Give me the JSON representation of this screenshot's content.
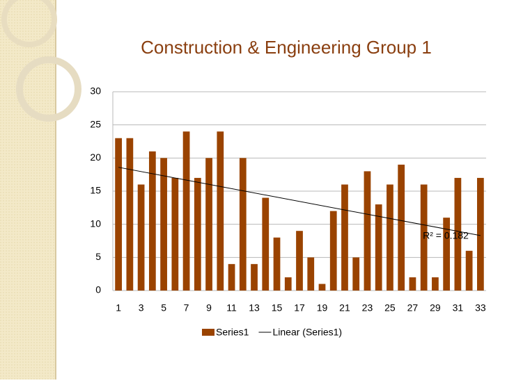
{
  "chart_data": {
    "type": "bar",
    "title": "Construction & Engineering Group 1",
    "categories": [
      1,
      null,
      3,
      null,
      5,
      null,
      7,
      null,
      9,
      null,
      11,
      null,
      13,
      null,
      15,
      null,
      17,
      null,
      19,
      null,
      21,
      null,
      23,
      null,
      25,
      null,
      27,
      null,
      29,
      null,
      31,
      null,
      33
    ],
    "series": [
      {
        "name": "Series1",
        "color": "#9a4300",
        "values": [
          23,
          23,
          16,
          21,
          20,
          17,
          24,
          17,
          20,
          24,
          4,
          20,
          4,
          14,
          8,
          2,
          9,
          5,
          1,
          12,
          16,
          5,
          18,
          13,
          16,
          19,
          2,
          16,
          2,
          11,
          17,
          6,
          17
        ]
      }
    ],
    "trendline": {
      "name": "Linear (Series1)",
      "color": "#000000",
      "start": 18.6,
      "end": 8.3,
      "label": "R² = 0.182"
    },
    "ylim": [
      0,
      30
    ],
    "yticks": [
      0,
      5,
      10,
      15,
      20,
      25,
      30
    ],
    "grid": true,
    "legend": "bottom"
  }
}
